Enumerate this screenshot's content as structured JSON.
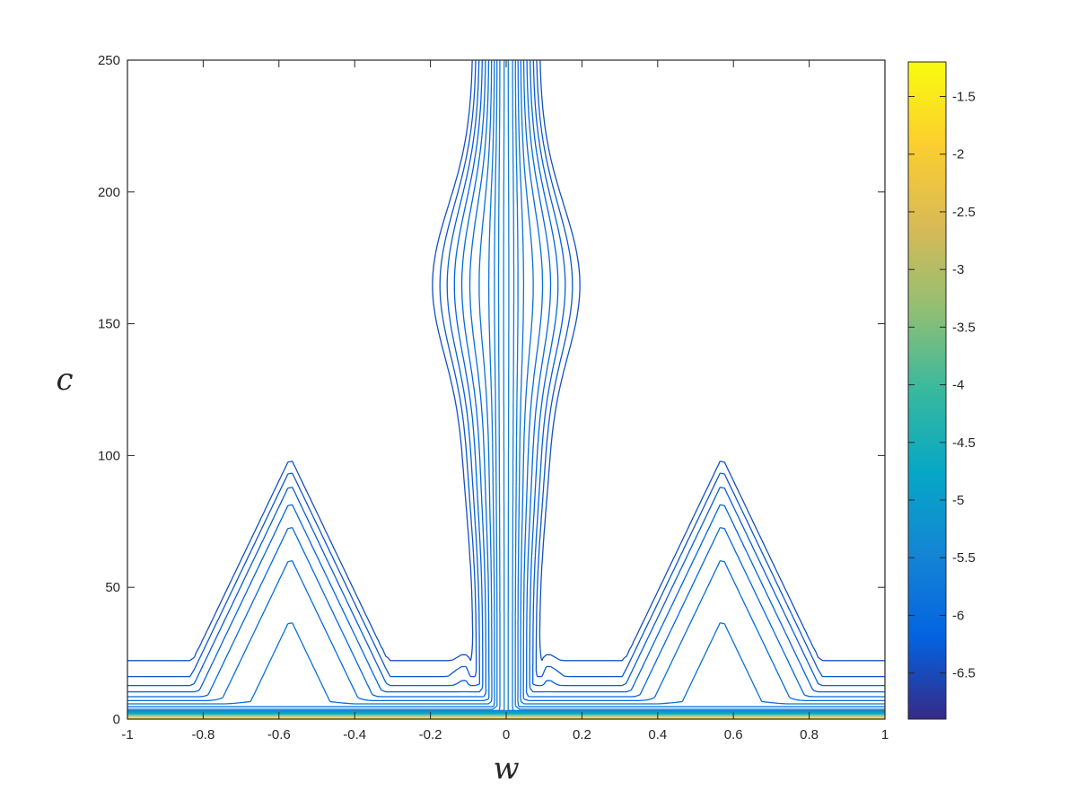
{
  "chart_data": {
    "type": "contour",
    "title": "",
    "xlabel": "w",
    "ylabel": "c",
    "xlim": [
      -1,
      1
    ],
    "ylim": [
      0,
      250
    ],
    "x_ticks": [
      -1,
      -0.8,
      -0.6,
      -0.4,
      -0.2,
      0,
      0.2,
      0.4,
      0.6,
      0.8,
      1
    ],
    "x_tick_labels": [
      "-1",
      "-0.8",
      "-0.6",
      "-0.4",
      "-0.2",
      "0",
      "0.2",
      "0.4",
      "0.6",
      "0.8",
      "1"
    ],
    "y_ticks": [
      0,
      50,
      100,
      150,
      200,
      250
    ],
    "y_tick_labels": [
      "0",
      "50",
      "100",
      "150",
      "200",
      "250"
    ],
    "colorbar": {
      "colormap": "parula",
      "range": [
        -6.9,
        -1.2
      ],
      "ticks": [
        -6.5,
        -6,
        -5.5,
        -5,
        -4.5,
        -4,
        -3.5,
        -3,
        -2.5,
        -2,
        -1.5
      ],
      "tick_labels": [
        "-6.5",
        "-6",
        "-5.5",
        "-5",
        "-4.5",
        "-4",
        "-3.5",
        "-3",
        "-2.5",
        "-2",
        "-1.5"
      ],
      "stops": [
        "#352a87",
        "#0363e1",
        "#1485d4",
        "#06a7c6",
        "#38b99e",
        "#92bf73",
        "#d9ba56",
        "#fcce2e",
        "#f9fb0e"
      ]
    },
    "regions": [
      {
        "name": "central column",
        "w_range": [
          -0.1,
          0.1
        ],
        "c_range": [
          0,
          250
        ]
      },
      {
        "name": "central bulge",
        "w_range": [
          -0.22,
          0.22
        ],
        "c_range": [
          130,
          200
        ]
      },
      {
        "name": "left lobe",
        "w_range": [
          -1,
          -0.1
        ],
        "c_range": [
          0,
          115
        ],
        "peak": [
          -0.57,
          115
        ]
      },
      {
        "name": "right lobe",
        "w_range": [
          0.1,
          1
        ],
        "c_range": [
          0,
          115
        ],
        "peak": [
          0.57,
          115
        ]
      },
      {
        "name": "base band",
        "w_range": [
          -1,
          1
        ],
        "c_range": [
          0,
          3
        ]
      }
    ]
  }
}
